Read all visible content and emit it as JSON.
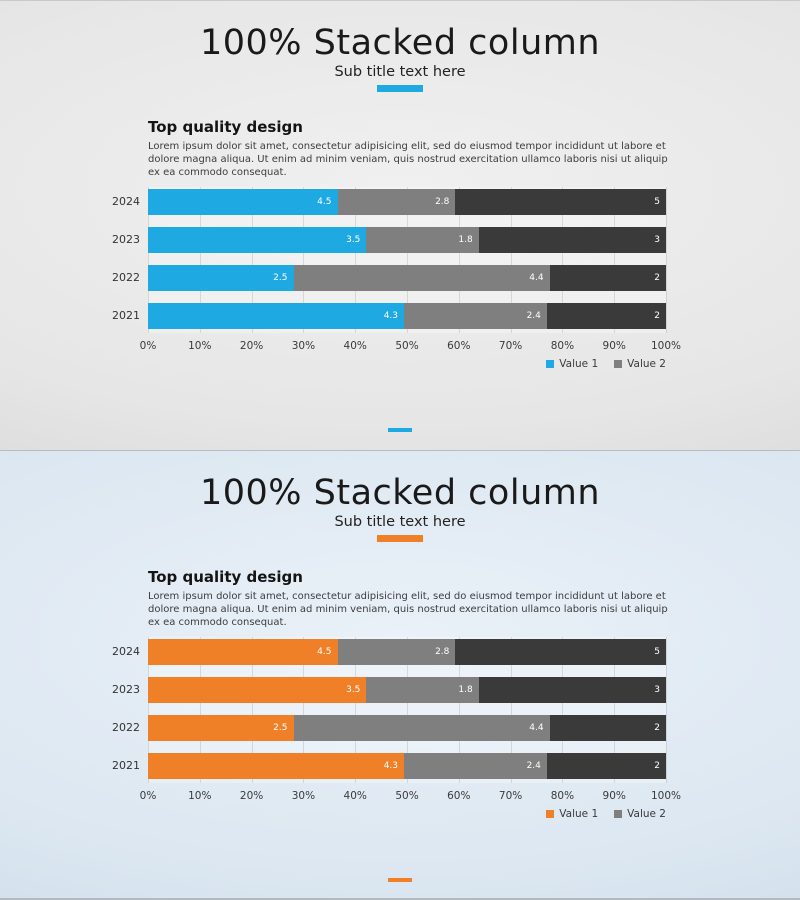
{
  "panels": [
    {
      "title": "100% Stacked column",
      "subtitle": "Sub title text here",
      "accent_color": "#1FA9E3",
      "background": {
        "light": "#F0F0F0",
        "mid": "#E6E6E6",
        "dark": "#D2D2D2"
      },
      "heading": "Top quality design",
      "body": "Lorem ipsum dolor sit amet, consectetur adipisicing elit, sed do eiusmod tempor incididunt ut labore et dolore magna aliqua. Ut enim ad minim veniam, quis nostrud exercitation ullamco laboris nisi ut aliquip ex ea commodo consequat.",
      "legend": [
        {
          "label": "Value 1",
          "color": "#1FA9E3"
        },
        {
          "label": "Value 2",
          "color": "#7F7F7F"
        }
      ]
    },
    {
      "title": "100% Stacked column",
      "subtitle": "Sub title text here",
      "accent_color": "#F08028",
      "background": {
        "light": "#EAF1F8",
        "mid": "#DCE7F1",
        "dark": "#C8D7E4"
      },
      "heading": "Top quality design",
      "body": "Lorem ipsum dolor sit amet, consectetur adipisicing elit, sed do eiusmod tempor incididunt ut labore et dolore magna aliqua. Ut enim ad minim veniam, quis nostrud exercitation ullamco laboris nisi ut aliquip ex ea commodo consequat.",
      "legend": [
        {
          "label": "Value 1",
          "color": "#F08028"
        },
        {
          "label": "Value 2",
          "color": "#7F7F7F"
        }
      ]
    }
  ],
  "chart_data": [
    {
      "type": "bar",
      "variant": "100-percent-stacked-horizontal",
      "title": "100% Stacked column",
      "categories": [
        "2024",
        "2023",
        "2022",
        "2021"
      ],
      "series": [
        {
          "name": "Value 1",
          "color": "#1FA9E3",
          "in_legend": true,
          "values": [
            4.5,
            3.5,
            2.5,
            4.3
          ]
        },
        {
          "name": "Value 2",
          "color": "#7F7F7F",
          "in_legend": true,
          "values": [
            2.8,
            1.8,
            4.4,
            2.4
          ]
        },
        {
          "name": "",
          "color": "#3A3A3A",
          "in_legend": false,
          "values": [
            5,
            3,
            2,
            2
          ]
        }
      ],
      "x_ticks": [
        "0%",
        "10%",
        "20%",
        "30%",
        "40%",
        "50%",
        "60%",
        "70%",
        "80%",
        "90%",
        "100%"
      ],
      "xlim": [
        0,
        100
      ],
      "grid": true,
      "legend_position": "bottom-right",
      "data_labels": "inside-end-white"
    },
    {
      "type": "bar",
      "variant": "100-percent-stacked-horizontal",
      "title": "100% Stacked column",
      "categories": [
        "2024",
        "2023",
        "2022",
        "2021"
      ],
      "series": [
        {
          "name": "Value 1",
          "color": "#F08028",
          "in_legend": true,
          "values": [
            4.5,
            3.5,
            2.5,
            4.3
          ]
        },
        {
          "name": "Value 2",
          "color": "#7F7F7F",
          "in_legend": true,
          "values": [
            2.8,
            1.8,
            4.4,
            2.4
          ]
        },
        {
          "name": "",
          "color": "#3A3A3A",
          "in_legend": false,
          "values": [
            5,
            3,
            2,
            2
          ]
        }
      ],
      "x_ticks": [
        "0%",
        "10%",
        "20%",
        "30%",
        "40%",
        "50%",
        "60%",
        "70%",
        "80%",
        "90%",
        "100%"
      ],
      "xlim": [
        0,
        100
      ],
      "grid": true,
      "legend_position": "bottom-right",
      "data_labels": "inside-end-white"
    }
  ]
}
